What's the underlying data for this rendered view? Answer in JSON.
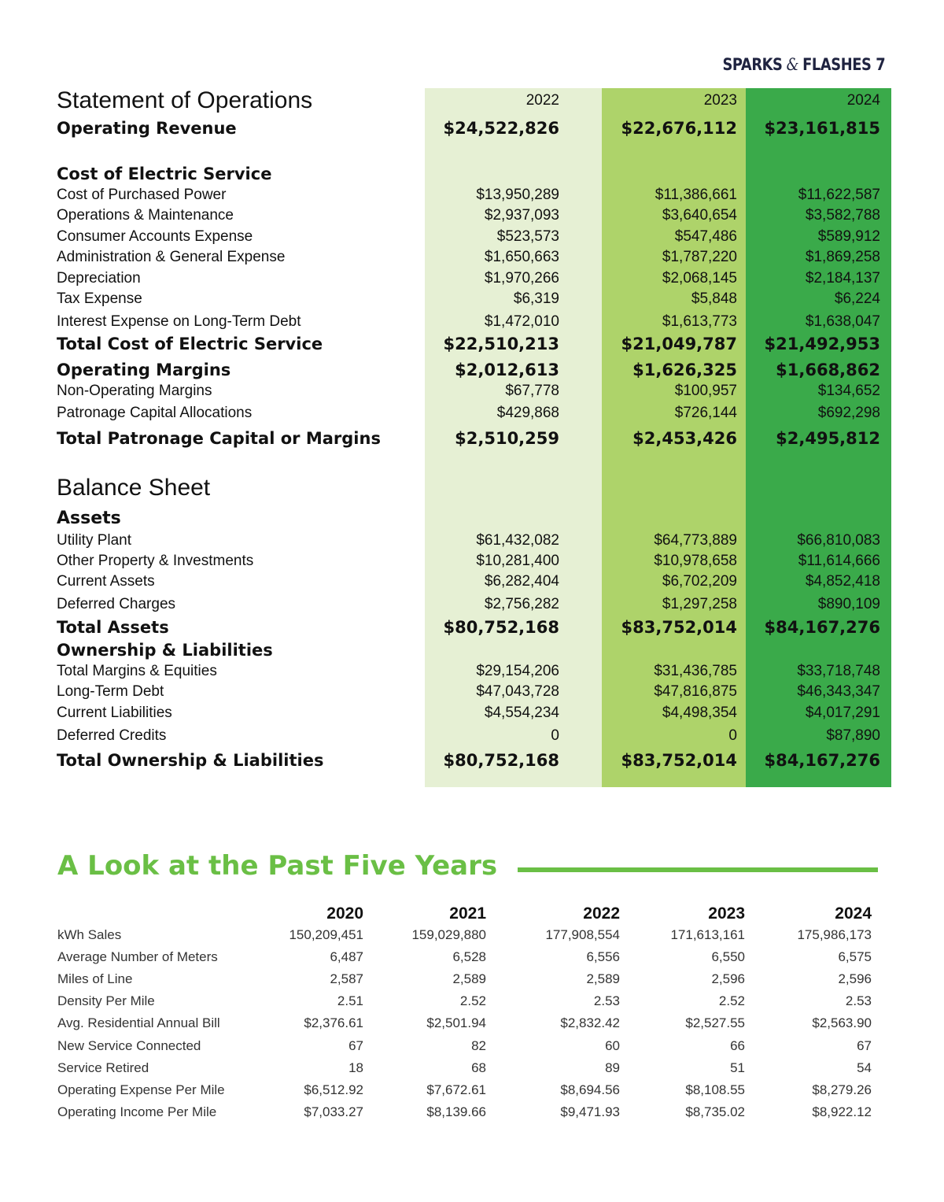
{
  "header": {
    "left": "SPARKS",
    "amp": "&",
    "right": "FLASHES",
    "page": "7"
  },
  "statement": {
    "years": [
      "2022",
      "2023",
      "2024"
    ],
    "rows": [
      {
        "label": "Statement of Operations",
        "style": "big",
        "values": [
          "2022",
          "2023",
          "2024"
        ]
      },
      {
        "label": "Operating Revenue",
        "style": "bold",
        "values": [
          "$24,522,826",
          "$22,676,112",
          "$23,161,815"
        ]
      },
      {
        "label": "Cost of Electric Service",
        "style": "bold",
        "values": []
      },
      {
        "label": "Cost of Purchased Power",
        "style": "",
        "values": [
          "$13,950,289",
          "$11,386,661",
          "$11,622,587"
        ]
      },
      {
        "label": "Operations & Maintenance",
        "style": "",
        "values": [
          "$2,937,093",
          "$3,640,654",
          "$3,582,788"
        ]
      },
      {
        "label": "Consumer Accounts Expense",
        "style": "",
        "values": [
          "$523,573",
          "$547,486",
          "$589,912"
        ]
      },
      {
        "label": "Administration & General Expense",
        "style": "",
        "values": [
          "$1,650,663",
          "$1,787,220",
          "$1,869,258"
        ]
      },
      {
        "label": "Depreciation",
        "style": "",
        "values": [
          "$1,970,266",
          "$2,068,145",
          "$2,184,137"
        ]
      },
      {
        "label": "Tax Expense",
        "style": "",
        "values": [
          "$6,319",
          "$5,848",
          "$6,224"
        ]
      },
      {
        "label": "Interest Expense on Long-Term Debt",
        "style": "",
        "values": [
          "$1,472,010",
          "$1,613,773",
          "$1,638,047"
        ]
      },
      {
        "label": "Total Cost of Electric Service",
        "style": "bold",
        "values": [
          "$22,510,213",
          "$21,049,787",
          "$21,492,953"
        ]
      },
      {
        "label": "Operating Margins",
        "style": "bold",
        "values": [
          "$2,012,613",
          "$1,626,325",
          "$1,668,862"
        ]
      },
      {
        "label": "Non-Operating Margins",
        "style": "",
        "values": [
          "$67,778",
          "$100,957",
          "$134,652"
        ]
      },
      {
        "label": "Patronage Capital Allocations",
        "style": "",
        "values": [
          "$429,868",
          "$726,144",
          "$692,298"
        ]
      },
      {
        "label": "Total Patronage Capital or Margins",
        "style": "bold",
        "values": [
          "$2,510,259",
          "$2,453,426",
          "$2,495,812"
        ]
      },
      {
        "label": "Balance Sheet",
        "style": "big",
        "values": []
      },
      {
        "label": "Assets",
        "style": "bold sub",
        "values": []
      },
      {
        "label": "Utility Plant",
        "style": "",
        "values": [
          "$61,432,082",
          "$64,773,889",
          "$66,810,083"
        ]
      },
      {
        "label": "Other Property & Investments",
        "style": "",
        "values": [
          "$10,281,400",
          "$10,978,658",
          "$11,614,666"
        ]
      },
      {
        "label": "Current Assets",
        "style": "",
        "values": [
          "$6,282,404",
          "$6,702,209",
          "$4,852,418"
        ]
      },
      {
        "label": "Deferred Charges",
        "style": "",
        "values": [
          "$2,756,282",
          "$1,297,258",
          "$890,109"
        ]
      },
      {
        "label": "Total Assets",
        "style": "bold",
        "values": [
          "$80,752,168",
          "$83,752,014",
          "$84,167,276"
        ]
      },
      {
        "label": "Ownership & Liabilities",
        "style": "bold",
        "values": []
      },
      {
        "label": "Total Margins & Equities",
        "style": "",
        "values": [
          "$29,154,206",
          "$31,436,785",
          "$33,718,748"
        ]
      },
      {
        "label": "Long-Term Debt",
        "style": "",
        "values": [
          "$47,043,728",
          "$47,816,875",
          "$46,343,347"
        ]
      },
      {
        "label": "Current Liabilities",
        "style": "",
        "values": [
          "$4,554,234",
          "$4,498,354",
          "$4,017,291"
        ]
      },
      {
        "label": "Deferred Credits",
        "style": "",
        "values": [
          "0",
          "0",
          "$87,890"
        ]
      },
      {
        "label": "Total Ownership & Liabilities",
        "style": "bold",
        "values": [
          "$80,752,168",
          "$83,752,014",
          "$84,167,276"
        ]
      }
    ]
  },
  "five_years": {
    "title": "A Look at the Past Five Years",
    "years": [
      "2020",
      "2021",
      "2022",
      "2023",
      "2024"
    ],
    "rows": [
      {
        "label": "kWh Sales",
        "values": [
          "150,209,451",
          "159,029,880",
          "177,908,554",
          "171,613,161",
          "175,986,173"
        ]
      },
      {
        "label": "Average Number of  Meters",
        "values": [
          "6,487",
          "6,528",
          "6,556",
          "6,550",
          "6,575"
        ]
      },
      {
        "label": "Miles of Line",
        "values": [
          "2,587",
          "2,589",
          "2,589",
          "2,596",
          "2,596"
        ]
      },
      {
        "label": "Density Per Mile",
        "values": [
          "2.51",
          "2.52",
          "2.53",
          "2.52",
          "2.53"
        ]
      },
      {
        "label": "Avg. Residential Annual Bill",
        "values": [
          "$2,376.61",
          "$2,501.94",
          "$2,832.42",
          "$2,527.55",
          "$2,563.90"
        ]
      },
      {
        "label": "New Service Connected",
        "values": [
          "67",
          "82",
          "60",
          "66",
          "67"
        ]
      },
      {
        "label": "Service Retired",
        "values": [
          "18",
          "68",
          "89",
          "51",
          "54"
        ]
      },
      {
        "label": "Operating Expense Per Mile",
        "values": [
          "$6,512.92",
          "$7,672.61",
          "$8,694.56",
          "$8,108.55",
          "$8,279.26"
        ]
      },
      {
        "label": "Operating Income Per Mile",
        "values": [
          "$7,033.27",
          "$8,139.66",
          "$9,471.93",
          "$8,735.02",
          "$8,922.12"
        ]
      }
    ]
  }
}
